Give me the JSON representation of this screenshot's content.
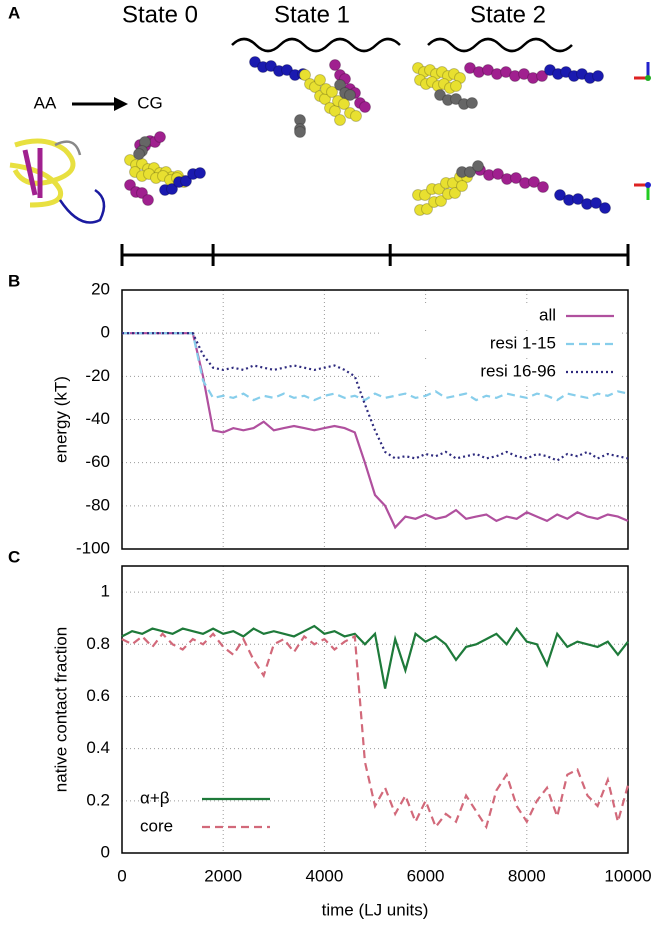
{
  "panel_a": {
    "label": "A",
    "states": [
      "State 0",
      "State 1",
      "State 2"
    ],
    "from": "AA",
    "to": "CG",
    "state_boundaries": [
      0,
      1800,
      5300,
      10000
    ]
  },
  "chart_data": [
    {
      "type": "line",
      "panel_label": "B",
      "ylabel": "energy (kT)",
      "x": [
        0,
        200,
        400,
        600,
        800,
        1000,
        1200,
        1400,
        1600,
        1800,
        2000,
        2200,
        2400,
        2600,
        2800,
        3000,
        3200,
        3400,
        3600,
        3800,
        4000,
        4200,
        4400,
        4600,
        4800,
        5000,
        5200,
        5400,
        5600,
        5800,
        6000,
        6200,
        6400,
        6600,
        6800,
        7000,
        7200,
        7400,
        7600,
        7800,
        8000,
        8200,
        8400,
        8600,
        8800,
        9000,
        9200,
        9400,
        9600,
        9800,
        10000
      ],
      "xlim": [
        0,
        10000
      ],
      "xticks": [
        0,
        2000,
        4000,
        6000,
        8000,
        10000
      ],
      "show_xtick_labels": false,
      "ylim": [
        -100,
        20
      ],
      "yticks": [
        20,
        0,
        -20,
        -40,
        -60,
        -80,
        -100
      ],
      "grid": true,
      "legend": "upper right",
      "series": [
        {
          "name": "all",
          "color": "#b0509e",
          "dash": "solid",
          "values": [
            0,
            0,
            0,
            0,
            0,
            0,
            0,
            0,
            -20,
            -45,
            -46,
            -44,
            -45,
            -44,
            -41,
            -45,
            -44,
            -43,
            -44,
            -45,
            -44,
            -43,
            -44,
            -46,
            -60,
            -75,
            -80,
            -90,
            -85,
            -86,
            -84,
            -86,
            -85,
            -82,
            -86,
            -85,
            -84,
            -87,
            -85,
            -86,
            -83,
            -85,
            -87,
            -84,
            -86,
            -83,
            -85,
            -86,
            -84,
            -85,
            -87
          ]
        },
        {
          "name": "resi 1-15",
          "color": "#87ceeb",
          "dash": "dashed",
          "values": [
            0,
            0,
            0,
            0,
            0,
            0,
            0,
            0,
            -22,
            -30,
            -29,
            -30,
            -28,
            -31,
            -29,
            -30,
            -28,
            -30,
            -29,
            -31,
            -29,
            -28,
            -30,
            -29,
            -31,
            -28,
            -30,
            -29,
            -28,
            -30,
            -29,
            -27,
            -30,
            -29,
            -28,
            -31,
            -29,
            -30,
            -28,
            -29,
            -30,
            -28,
            -29,
            -31,
            -28,
            -29,
            -30,
            -28,
            -29,
            -27,
            -28
          ]
        },
        {
          "name": "resi 16-96",
          "color": "#2e2a7e",
          "dash": "dotted",
          "values": [
            0,
            0,
            0,
            0,
            0,
            0,
            0,
            0,
            -10,
            -16,
            -17,
            -16,
            -17,
            -15,
            -16,
            -17,
            -16,
            -15,
            -16,
            -17,
            -16,
            -15,
            -17,
            -20,
            -33,
            -45,
            -55,
            -58,
            -57,
            -58,
            -56,
            -57,
            -55,
            -58,
            -57,
            -56,
            -58,
            -57,
            -55,
            -57,
            -58,
            -56,
            -57,
            -59,
            -56,
            -57,
            -55,
            -58,
            -56,
            -57,
            -58
          ]
        }
      ]
    },
    {
      "type": "line",
      "panel_label": "C",
      "ylabel": "native contact fraction",
      "xlabel": "time (LJ units)",
      "x": [
        0,
        200,
        400,
        600,
        800,
        1000,
        1200,
        1400,
        1600,
        1800,
        2000,
        2200,
        2400,
        2600,
        2800,
        3000,
        3200,
        3400,
        3600,
        3800,
        4000,
        4200,
        4400,
        4600,
        4800,
        5000,
        5200,
        5400,
        5600,
        5800,
        6000,
        6200,
        6400,
        6600,
        6800,
        7000,
        7200,
        7400,
        7600,
        7800,
        8000,
        8200,
        8400,
        8600,
        8800,
        9000,
        9200,
        9400,
        9600,
        9800,
        10000
      ],
      "xlim": [
        0,
        10000
      ],
      "xticks": [
        0,
        2000,
        4000,
        6000,
        8000,
        10000
      ],
      "show_xtick_labels": true,
      "ylim": [
        0,
        1.1
      ],
      "yticks": [
        0,
        0.2,
        0.4,
        0.6,
        0.8,
        1
      ],
      "grid": true,
      "legend": "lower left",
      "series": [
        {
          "name": "α+β",
          "color": "#1e7a3a",
          "dash": "solid",
          "values": [
            0.83,
            0.85,
            0.84,
            0.86,
            0.85,
            0.84,
            0.86,
            0.85,
            0.84,
            0.86,
            0.84,
            0.85,
            0.83,
            0.86,
            0.84,
            0.85,
            0.84,
            0.83,
            0.85,
            0.87,
            0.84,
            0.85,
            0.83,
            0.84,
            0.8,
            0.84,
            0.63,
            0.82,
            0.7,
            0.84,
            0.81,
            0.83,
            0.8,
            0.74,
            0.79,
            0.8,
            0.82,
            0.84,
            0.8,
            0.86,
            0.81,
            0.8,
            0.72,
            0.84,
            0.79,
            0.81,
            0.8,
            0.79,
            0.81,
            0.76,
            0.81
          ]
        },
        {
          "name": "core",
          "color": "#d2697a",
          "dash": "dashed",
          "values": [
            0.82,
            0.8,
            0.83,
            0.79,
            0.84,
            0.8,
            0.78,
            0.82,
            0.8,
            0.84,
            0.79,
            0.76,
            0.82,
            0.74,
            0.68,
            0.8,
            0.82,
            0.77,
            0.83,
            0.8,
            0.82,
            0.78,
            0.81,
            0.83,
            0.35,
            0.18,
            0.25,
            0.15,
            0.22,
            0.12,
            0.2,
            0.1,
            0.15,
            0.12,
            0.22,
            0.16,
            0.1,
            0.24,
            0.3,
            0.18,
            0.12,
            0.2,
            0.25,
            0.14,
            0.3,
            0.32,
            0.22,
            0.18,
            0.28,
            0.12,
            0.26
          ]
        }
      ]
    }
  ]
}
